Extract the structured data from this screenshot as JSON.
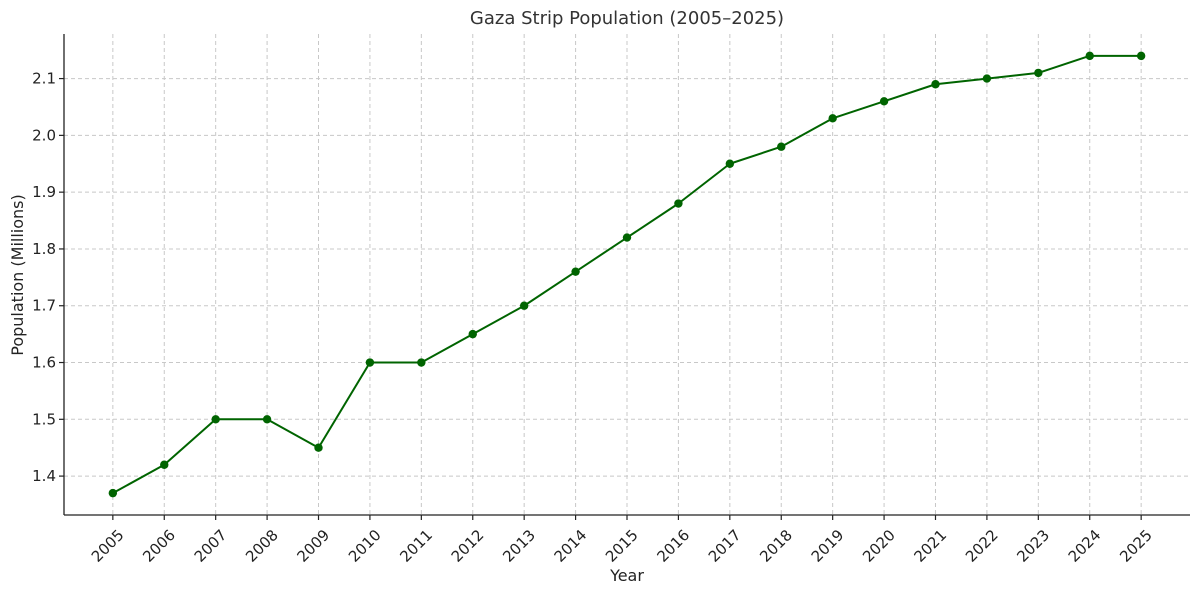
{
  "chart_data": {
    "type": "line",
    "title": "Gaza Strip Population (2005–2025)",
    "xlabel": "Year",
    "ylabel": "Population (Millions)",
    "x": [
      2005,
      2006,
      2007,
      2008,
      2009,
      2010,
      2011,
      2012,
      2013,
      2014,
      2015,
      2016,
      2017,
      2018,
      2019,
      2020,
      2021,
      2022,
      2023,
      2024,
      2025
    ],
    "x_tick_labels": [
      "2005",
      "2006",
      "2007",
      "2008",
      "2009",
      "2010",
      "2011",
      "2012",
      "2013",
      "2014",
      "2015",
      "2016",
      "2017",
      "2018",
      "2019",
      "2020",
      "2021",
      "2022",
      "2023",
      "2024",
      "2025"
    ],
    "y": [
      1.37,
      1.42,
      1.5,
      1.5,
      1.45,
      1.6,
      1.6,
      1.65,
      1.7,
      1.76,
      1.82,
      1.88,
      1.95,
      1.98,
      2.03,
      2.06,
      2.09,
      2.1,
      2.11,
      2.14,
      2.14
    ],
    "y_ticks": [
      1.4,
      1.5,
      1.6,
      1.7,
      1.8,
      1.9,
      2.0,
      2.1
    ],
    "y_tick_labels": [
      "1.4",
      "1.5",
      "1.6",
      "1.7",
      "1.8",
      "1.9",
      "2.0",
      "2.1"
    ],
    "xlim": [
      2004.05,
      2025.95
    ],
    "ylim": [
      1.3315,
      2.1785
    ],
    "grid": true,
    "legend": "none",
    "line_color": "#006400",
    "marker": "circle"
  }
}
